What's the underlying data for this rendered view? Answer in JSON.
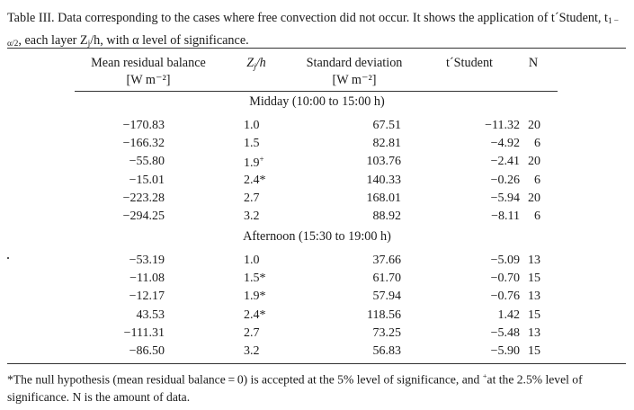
{
  "caption": {
    "prefix": "Table III. Data corresponding to the cases where free convection did not occur. It shows the application of t´Student, t",
    "subscript": "1 − α/2",
    "suffix": ", each layer Z",
    "suffix_sub": "j",
    "suffix_end": "/h, with α level of significance."
  },
  "headers": {
    "mean_line1": "Mean residual balance",
    "mean_line2": "[W m⁻²]",
    "zj_main": "Z",
    "zj_sub": "j",
    "zj_end": "/h",
    "sd_line1": "Standard deviation",
    "sd_line2": "[W m⁻²]",
    "t": "t´Student",
    "n": "N"
  },
  "sections": [
    {
      "label": "Midday (10:00 to 15:00 h)",
      "rows": [
        {
          "mean": "−170.83",
          "zj": "1.0",
          "mark": "",
          "sd": "67.51",
          "t": "−11.32",
          "n": "20"
        },
        {
          "mean": "−166.32",
          "zj": "1.5",
          "mark": "",
          "sd": "82.81",
          "t": "−4.92",
          "n": "6"
        },
        {
          "mean": "−55.80",
          "zj": "1.9",
          "mark": "+",
          "sd": "103.76",
          "t": "−2.41",
          "n": "20"
        },
        {
          "mean": "−15.01",
          "zj": "2.4*",
          "mark": "",
          "sd": "140.33",
          "t": "−0.26",
          "n": "6"
        },
        {
          "mean": "−223.28",
          "zj": "2.7",
          "mark": "",
          "sd": "168.01",
          "t": "−5.94",
          "n": "20"
        },
        {
          "mean": "−294.25",
          "zj": "3.2",
          "mark": "",
          "sd": "88.92",
          "t": "−8.11",
          "n": "6"
        }
      ]
    },
    {
      "label": "Afternoon (15:30 to 19:00 h)",
      "rows": [
        {
          "mean": "−53.19",
          "zj": "1.0",
          "mark": "",
          "sd": "37.66",
          "t": "−5.09",
          "n": "13"
        },
        {
          "mean": "−11.08",
          "zj": "1.5*",
          "mark": "",
          "sd": "61.70",
          "t": "−0.70",
          "n": "15"
        },
        {
          "mean": "−12.17",
          "zj": "1.9*",
          "mark": "",
          "sd": "57.94",
          "t": "−0.76",
          "n": "13"
        },
        {
          "mean": "43.53",
          "zj": "2.4*",
          "mark": "",
          "sd": "118.56",
          "t": "1.42",
          "n": "15"
        },
        {
          "mean": "−111.31",
          "zj": "2.7",
          "mark": "",
          "sd": "73.25",
          "t": "−5.48",
          "n": "13"
        },
        {
          "mean": "−86.50",
          "zj": "3.2",
          "mark": "",
          "sd": "56.83",
          "t": "−5.90",
          "n": "15"
        }
      ]
    }
  ],
  "footnote": {
    "part1": "*The null hypothesis (mean residual balance = 0) is accepted at the 5% level of significance, and ",
    "mark": "+",
    "part2": "at the 2.5% level of significance. N is the amount of data."
  }
}
